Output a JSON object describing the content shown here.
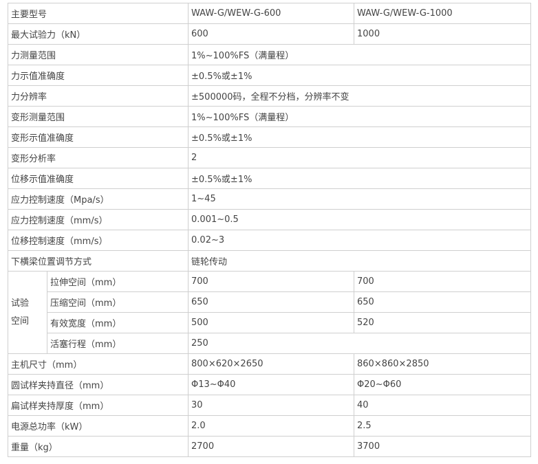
{
  "rows": [
    {
      "label": "主要型号",
      "c1": "WAW-G/WEW-G-600",
      "c2": "WAW-G/WEW-G-1000"
    },
    {
      "label": "最大试验力（kN）",
      "c1": "600",
      "c2": "1000"
    },
    {
      "label": "力测量范围",
      "value": "1%~100%FS（满量程）"
    },
    {
      "label": "力示值准确度",
      "value": "±0.5%或±1%"
    },
    {
      "label": "力分辨率",
      "value": "±500000码，全程不分档，分辨率不变"
    },
    {
      "label": "变形测量范围",
      "value": "1%~100%FS（满量程）"
    },
    {
      "label": "变形示值准确度",
      "value": "±0.5%或±1%"
    },
    {
      "label": "变形分析率",
      "value": "2"
    },
    {
      "label": "位移示值准确度",
      "value": "±0.5%或±1%"
    },
    {
      "label": "应力控制速度（Mpa/s）",
      "value": "1~45"
    },
    {
      "label": "应力控制速度（mm/s）",
      "value": "0.001~0.5"
    },
    {
      "label": "位移控制速度（mm/s）",
      "value": "0.02~3"
    },
    {
      "label": "下横梁位置调节方式",
      "value": "链轮传动"
    }
  ],
  "test_space": {
    "group_line1": "试验",
    "group_line2": "空间",
    "rows": [
      {
        "label": "拉伸空间（mm）",
        "c1": "700",
        "c2": "700"
      },
      {
        "label": "压缩空间（mm）",
        "c1": "650",
        "c2": "650"
      },
      {
        "label": "有效宽度（mm）",
        "c1": "500",
        "c2": "520"
      },
      {
        "label": "活塞行程（mm）",
        "value": "250"
      }
    ]
  },
  "rows2": [
    {
      "label": "主机尺寸（mm）",
      "c1": "800×620×2650",
      "c2": "860×860×2850"
    },
    {
      "label": "圆试样夹持直径（mm）",
      "c1": "Φ13~Φ40",
      "c2": "Φ20~Φ60"
    },
    {
      "label": "扁试样夹持厚度（mm）",
      "c1": "30",
      "c2": "40"
    },
    {
      "label": "电源总功率（kW）",
      "c1": "2.0",
      "c2": "2.5"
    },
    {
      "label": "重量（kg）",
      "c1": "2700",
      "c2": "3700"
    }
  ]
}
